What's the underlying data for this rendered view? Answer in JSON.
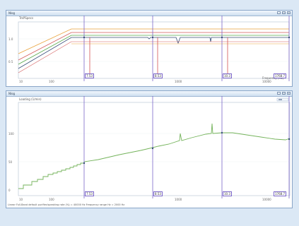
{
  "colors": {
    "marker": "#7b66c9",
    "trace_upper": "#e9a23b",
    "trace_mid": "#d35b5b",
    "trace_low_a": "#57a84b",
    "trace_low_b": "#394f7a",
    "limit": "#d35454",
    "green_trace": "#74b35b"
  },
  "top": {
    "title_short": "Nlog",
    "plot_title": "TrkPSpecs",
    "y_ticks": [
      "1.0",
      "0.5"
    ],
    "x_ticks": [
      "10",
      "100",
      "1000",
      "10000"
    ],
    "axis_unit": "Frequency [Hz]",
    "markers": [
      "7.53",
      "8.53",
      "10.3",
      "1768.7"
    ]
  },
  "bottom": {
    "title_short": "Nlog",
    "plot_title": "Loading (1/min)",
    "y_ticks": [
      "100",
      "50",
      "0"
    ],
    "x_ticks": [
      "10",
      "100",
      "1000",
      "10000"
    ],
    "markers": [
      "7.53",
      "8.53",
      "10.3",
      "1768.7"
    ],
    "status": "Linear Full-Band default purifier/speaking rate (%) = 40000 Hz Frequency range Hz = 2000 Hz"
  }
}
